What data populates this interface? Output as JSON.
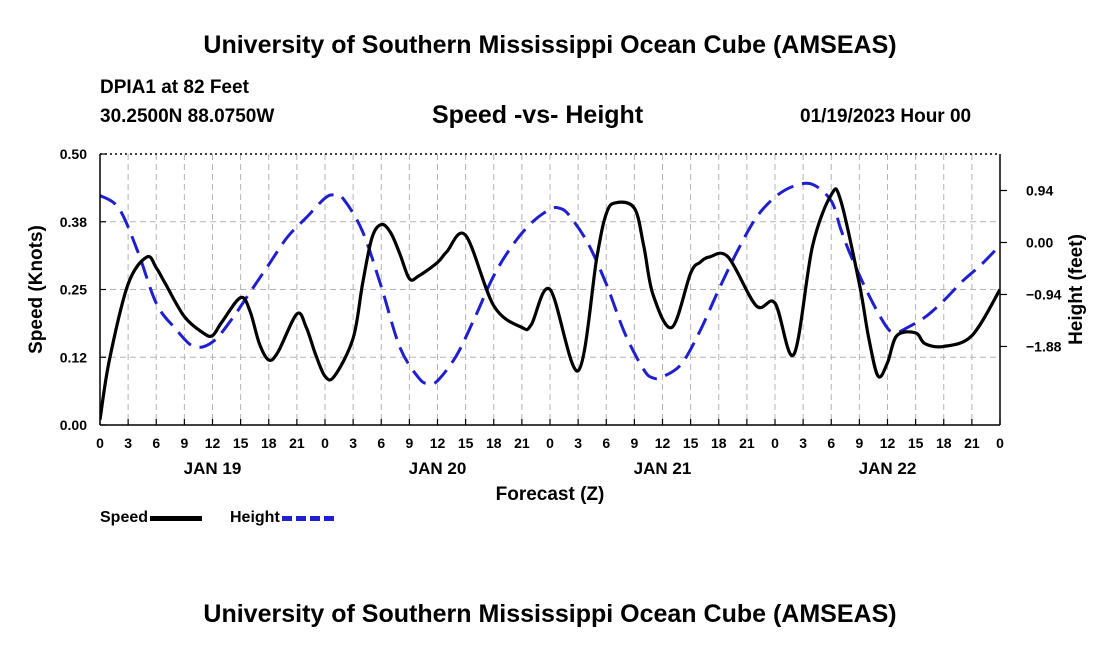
{
  "header": {
    "title": "University of Southern Mississippi Ocean Cube (AMSEAS)",
    "station": "DPIA1 at 82 Feet",
    "coords": "30.2500N  88.0750W",
    "subtitle": "Speed -vs- Height",
    "datetime": "01/19/2023 Hour 00"
  },
  "footer": {
    "title": "University of Southern Mississippi Ocean Cube (AMSEAS)"
  },
  "legend": {
    "speed": "Speed",
    "height": "Height"
  },
  "chart_data": {
    "type": "line",
    "title": "Speed -vs- Height",
    "xlabel": "Forecast (Z)",
    "ylabel": "Speed (Knots)",
    "y2label": "Height (feet)",
    "xlim": [
      0,
      96
    ],
    "ylim": [
      0,
      0.5
    ],
    "y2lim": [
      -3.3,
      1.6
    ],
    "x_ticks": [
      0,
      3,
      6,
      9,
      12,
      15,
      18,
      21,
      24,
      27,
      30,
      33,
      36,
      39,
      42,
      45,
      48,
      51,
      54,
      57,
      60,
      63,
      66,
      69,
      72,
      75,
      78,
      81,
      84,
      87,
      90,
      93,
      96
    ],
    "x_tick_labels": [
      "0",
      "3",
      "6",
      "9",
      "12",
      "15",
      "18",
      "21",
      "0",
      "3",
      "6",
      "9",
      "12",
      "15",
      "18",
      "21",
      "0",
      "3",
      "6",
      "9",
      "12",
      "15",
      "18",
      "21",
      "0",
      "3",
      "6",
      "9",
      "12",
      "15",
      "18",
      "21",
      "0"
    ],
    "day_labels": [
      {
        "x": 12,
        "label": "JAN 19"
      },
      {
        "x": 36,
        "label": "JAN 20"
      },
      {
        "x": 60,
        "label": "JAN 21"
      },
      {
        "x": 84,
        "label": "JAN 22"
      }
    ],
    "y_ticks": [
      0.0,
      0.125,
      0.25,
      0.375,
      0.5
    ],
    "y_tick_labels": [
      "0.00",
      "0.12",
      "0.25",
      "0.38",
      "0.50"
    ],
    "y2_ticks": [
      0.94,
      0.0,
      -0.94,
      -1.88
    ],
    "y2_tick_labels": [
      "0.94",
      "0.00",
      "−0.94",
      "−1.88"
    ],
    "grid": true,
    "series": [
      {
        "name": "Speed",
        "axis": "left",
        "color": "#000000",
        "dash": "solid",
        "x": [
          0,
          1,
          3,
          5,
          6,
          7,
          9,
          11,
          12,
          13,
          15,
          16,
          17,
          18,
          19,
          21,
          22,
          23,
          24,
          25,
          27,
          28,
          29,
          30,
          31,
          32,
          33,
          34,
          36,
          37,
          39,
          42,
          45,
          46,
          48,
          51,
          53,
          54,
          55,
          57,
          58,
          59,
          61,
          63,
          64,
          65,
          67,
          70,
          72,
          74,
          76,
          78,
          79,
          81,
          82,
          83,
          84,
          85,
          87,
          88,
          90,
          93,
          96
        ],
        "y": [
          0.01,
          0.12,
          0.26,
          0.31,
          0.29,
          0.26,
          0.2,
          0.17,
          0.165,
          0.19,
          0.235,
          0.21,
          0.15,
          0.12,
          0.135,
          0.205,
          0.18,
          0.13,
          0.09,
          0.09,
          0.16,
          0.26,
          0.345,
          0.37,
          0.355,
          0.315,
          0.27,
          0.275,
          0.3,
          0.32,
          0.35,
          0.22,
          0.18,
          0.185,
          0.25,
          0.1,
          0.31,
          0.39,
          0.41,
          0.4,
          0.33,
          0.24,
          0.18,
          0.28,
          0.3,
          0.31,
          0.31,
          0.22,
          0.225,
          0.13,
          0.33,
          0.425,
          0.415,
          0.26,
          0.16,
          0.09,
          0.115,
          0.165,
          0.17,
          0.15,
          0.145,
          0.165,
          0.25
        ]
      },
      {
        "name": "Height",
        "axis": "right",
        "color": "#1f1fd0",
        "dash": "dashed",
        "x": [
          0,
          2,
          4,
          6,
          8,
          10,
          12,
          14,
          16,
          18,
          20,
          22,
          24,
          25,
          26,
          28,
          30,
          32,
          34,
          35,
          36,
          38,
          40,
          42,
          44,
          46,
          48,
          49,
          50,
          52,
          54,
          56,
          58,
          59,
          60,
          62,
          64,
          66,
          68,
          70,
          72,
          74,
          76,
          78,
          79,
          80,
          82,
          84,
          85,
          86,
          88,
          90,
          92,
          94,
          96
        ],
        "y": [
          0.85,
          0.62,
          -0.15,
          -1.1,
          -1.55,
          -1.88,
          -1.8,
          -1.4,
          -0.9,
          -0.4,
          0.1,
          0.45,
          0.8,
          0.86,
          0.78,
          0.2,
          -0.8,
          -1.9,
          -2.45,
          -2.55,
          -2.5,
          -2.05,
          -1.35,
          -0.6,
          -0.05,
          0.35,
          0.6,
          0.62,
          0.5,
          0.0,
          -0.75,
          -1.65,
          -2.3,
          -2.45,
          -2.43,
          -2.2,
          -1.6,
          -0.85,
          -0.15,
          0.45,
          0.82,
          1.02,
          1.05,
          0.75,
          0.25,
          -0.2,
          -0.95,
          -1.55,
          -1.62,
          -1.55,
          -1.35,
          -1.05,
          -0.7,
          -0.4,
          -0.05
        ]
      }
    ]
  }
}
